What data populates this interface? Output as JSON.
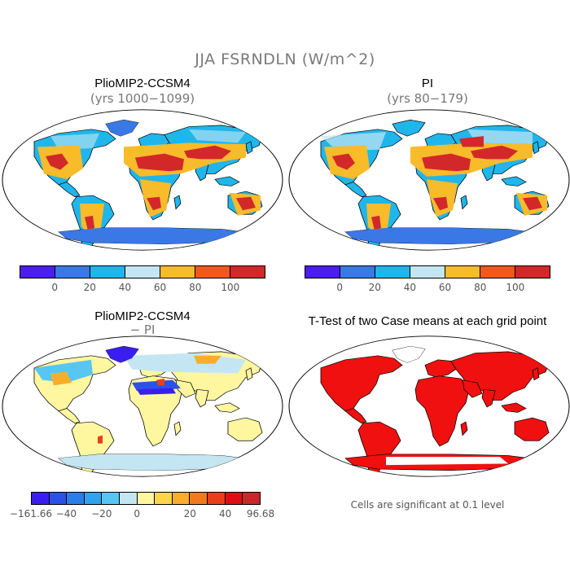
{
  "main_title": "JJA FSRNDLN (W/m^2)",
  "panels": [
    {
      "title": "PlioMIP2-CCSM4",
      "subtitle": "(yrs 1000−1099)"
    },
    {
      "title": "PI",
      "subtitle": "(yrs 80−179)"
    },
    {
      "title": "PlioMIP2-CCSM4",
      "subtitle": "− PI"
    },
    {
      "title": "T-Test of two Case means at each grid point",
      "subtitle": ""
    }
  ],
  "colorbar_top": {
    "colors": [
      "#4a1ef0",
      "#3a78e6",
      "#1fb6ec",
      "#c4e6f2",
      "#f8bb2a",
      "#f2581c",
      "#d3282a"
    ],
    "labels": [
      "0",
      "20",
      "40",
      "60",
      "80",
      "100"
    ]
  },
  "colorbar_diff": {
    "colors": [
      "#3a1ef0",
      "#2a52e8",
      "#2a7eea",
      "#2ea4ee",
      "#58c6f2",
      "#c4e6f2",
      "#fff7a0",
      "#fcd648",
      "#f8ae2a",
      "#f27a1c",
      "#ea3e1a",
      "#e00e14",
      "#c8282a"
    ],
    "labels": [
      "−161.66",
      "−40",
      "−20",
      "0",
      "20",
      "40",
      "96.68"
    ]
  },
  "significance_note": "Cells are significant at 0.1 level"
}
